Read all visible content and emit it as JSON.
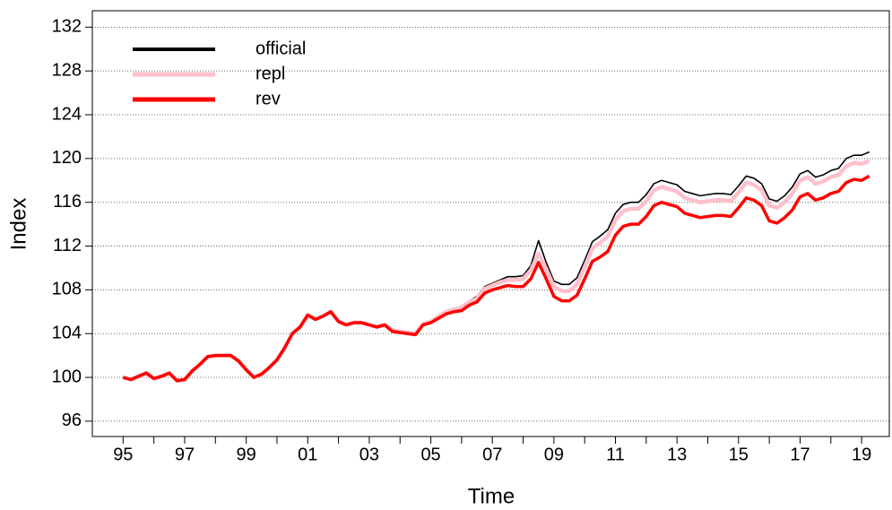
{
  "chart_data": {
    "type": "line",
    "x_label": "Time",
    "y_label": "Index",
    "x": [
      1995,
      1995.25,
      1995.5,
      1995.75,
      1996,
      1996.25,
      1996.5,
      1996.75,
      1997,
      1997.25,
      1997.5,
      1997.75,
      1998,
      1998.25,
      1998.5,
      1998.75,
      1999,
      1999.25,
      1999.5,
      1999.75,
      2000,
      2000.25,
      2000.5,
      2000.75,
      2001,
      2001.25,
      2001.5,
      2001.75,
      2002,
      2002.25,
      2002.5,
      2002.75,
      2003,
      2003.25,
      2003.5,
      2003.75,
      2004,
      2004.25,
      2004.5,
      2004.75,
      2005,
      2005.25,
      2005.5,
      2005.75,
      2006,
      2006.25,
      2006.5,
      2006.75,
      2007,
      2007.25,
      2007.5,
      2007.75,
      2008,
      2008.25,
      2008.5,
      2008.75,
      2009,
      2009.25,
      2009.5,
      2009.75,
      2010,
      2010.25,
      2010.5,
      2010.75,
      2011,
      2011.25,
      2011.5,
      2011.75,
      2012,
      2012.25,
      2012.5,
      2012.75,
      2013,
      2013.25,
      2013.5,
      2013.75,
      2014,
      2014.25,
      2014.5,
      2014.75,
      2015,
      2015.25,
      2015.5,
      2015.75,
      2016,
      2016.25,
      2016.5,
      2016.75,
      2017,
      2017.25,
      2017.5,
      2017.75,
      2018,
      2018.25,
      2018.5,
      2018.75,
      2019,
      2019.25
    ],
    "series": [
      {
        "name": "official",
        "color": "#000000",
        "linewidth": 1.6,
        "legend_linewidth": 4,
        "values": [
          100,
          99.8,
          100.1,
          100.4,
          99.9,
          100.1,
          100.4,
          99.7,
          99.8,
          100.6,
          101.2,
          101.9,
          102,
          102,
          102,
          101.5,
          100.7,
          100,
          100.3,
          100.9,
          101.6,
          102.7,
          104,
          104.6,
          105.7,
          105.3,
          105.6,
          106,
          105.1,
          104.8,
          105,
          105,
          104.8,
          104.7,
          104.9,
          104.4,
          104.3,
          104.2,
          104,
          105,
          105.2,
          105.7,
          106.1,
          106.3,
          106.5,
          107,
          107.4,
          108.3,
          108.6,
          108.9,
          109.2,
          109.2,
          109.3,
          110.2,
          112.5,
          110.5,
          108.8,
          108.5,
          108.5,
          109.1,
          110.7,
          112.4,
          112.9,
          113.5,
          115,
          115.8,
          116,
          116,
          116.7,
          117.7,
          118,
          117.8,
          117.6,
          117,
          116.8,
          116.6,
          116.7,
          116.8,
          116.8,
          116.7,
          117.5,
          118.4,
          118.2,
          117.7,
          116.3,
          116.1,
          116.6,
          117.4,
          118.6,
          118.9,
          118.3,
          118.5,
          118.9,
          119.1,
          120,
          120.3,
          120.3,
          120.6
        ]
      },
      {
        "name": "repl",
        "color": "#ffc0cb",
        "linewidth": 4.5,
        "legend_linewidth": 5,
        "values": [
          100,
          99.8,
          100.1,
          100.4,
          99.9,
          100.1,
          100.4,
          99.7,
          99.8,
          100.6,
          101.2,
          101.9,
          102,
          102,
          102,
          101.5,
          100.7,
          100,
          100.3,
          100.9,
          101.6,
          102.7,
          104,
          104.6,
          105.7,
          105.3,
          105.6,
          106,
          105.1,
          104.8,
          105,
          105,
          104.8,
          104.6,
          104.8,
          104.3,
          104.2,
          104.1,
          104,
          104.9,
          105.1,
          105.6,
          106,
          106.2,
          106.4,
          106.9,
          107.2,
          108.1,
          108.4,
          108.7,
          108.9,
          108.9,
          109,
          109.8,
          111.3,
          109.9,
          108.3,
          107.9,
          107.9,
          108.5,
          110.1,
          111.8,
          112.3,
          112.9,
          114.4,
          115.2,
          115.4,
          115.4,
          116.1,
          117.1,
          117.4,
          117.2,
          117,
          116.4,
          116.2,
          116,
          116.1,
          116.2,
          116.2,
          116.1,
          116.9,
          117.8,
          117.6,
          117.1,
          115.7,
          115.5,
          116,
          116.8,
          118,
          118.3,
          117.7,
          117.9,
          118.3,
          118.5,
          119.3,
          119.6,
          119.5,
          119.8
        ]
      },
      {
        "name": "rev",
        "color": "#ff0000",
        "linewidth": 3.5,
        "legend_linewidth": 5,
        "values": [
          100,
          99.8,
          100.1,
          100.4,
          99.9,
          100.1,
          100.4,
          99.7,
          99.8,
          100.6,
          101.2,
          101.9,
          102,
          102,
          102,
          101.5,
          100.7,
          100,
          100.3,
          100.9,
          101.6,
          102.7,
          104,
          104.6,
          105.7,
          105.3,
          105.6,
          106,
          105.1,
          104.8,
          105,
          105,
          104.8,
          104.6,
          104.8,
          104.2,
          104.1,
          104,
          103.9,
          104.8,
          105,
          105.4,
          105.8,
          106,
          106.1,
          106.6,
          106.9,
          107.7,
          108,
          108.2,
          108.4,
          108.3,
          108.3,
          109,
          110.5,
          109,
          107.4,
          107,
          107,
          107.5,
          109,
          110.6,
          111,
          111.5,
          113,
          113.8,
          114,
          114,
          114.7,
          115.7,
          116,
          115.8,
          115.6,
          115,
          114.8,
          114.6,
          114.7,
          114.8,
          114.8,
          114.7,
          115.5,
          116.4,
          116.2,
          115.7,
          114.3,
          114.1,
          114.6,
          115.3,
          116.5,
          116.8,
          116.2,
          116.4,
          116.8,
          117,
          117.8,
          118.1,
          118,
          118.4
        ]
      }
    ],
    "xlim": [
      1994,
      2019.9
    ],
    "xticks": [
      {
        "value": 1995,
        "label": "95"
      },
      {
        "value": 1997,
        "label": "97"
      },
      {
        "value": 1999,
        "label": "99"
      },
      {
        "value": 2001,
        "label": "01"
      },
      {
        "value": 2003,
        "label": "03"
      },
      {
        "value": 2005,
        "label": "05"
      },
      {
        "value": 2007,
        "label": "07"
      },
      {
        "value": 2009,
        "label": "09"
      },
      {
        "value": 2011,
        "label": "11"
      },
      {
        "value": 2013,
        "label": "13"
      },
      {
        "value": 2015,
        "label": "15"
      },
      {
        "value": 2017,
        "label": "17"
      },
      {
        "value": 2019,
        "label": "19"
      }
    ],
    "xminorticks": [
      1996,
      1998,
      2000,
      2002,
      2004,
      2006,
      2008,
      2010,
      2012,
      2014,
      2016,
      2018
    ],
    "ylim": [
      94.6,
      133.5
    ],
    "yticks": [
      96,
      100,
      104,
      108,
      112,
      116,
      120,
      124,
      128,
      132
    ],
    "grid": true,
    "legend_position": "top-left"
  }
}
